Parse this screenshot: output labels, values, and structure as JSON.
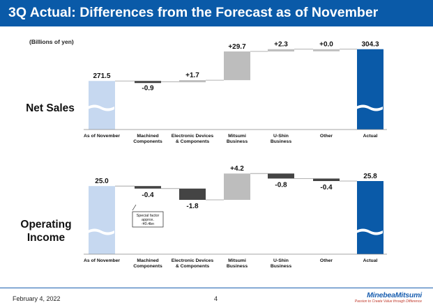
{
  "title": "3Q Actual: Differences from the Forecast as of November",
  "unit": "(Billions of yen)",
  "colors": {
    "header": "#0a5aa8",
    "start": "#c6d8f0",
    "end": "#0a5aa8",
    "positive": "#bdbdbd",
    "negative": "#444444",
    "connector": "#999999"
  },
  "chart_data": [
    {
      "type": "bar",
      "subtype": "waterfall",
      "title": "Net Sales",
      "categories": [
        "As of November",
        "Machined\nComponents",
        "Electronic Devices\n& Components",
        "Mitsumi\nBusiness",
        "U-Shin\nBusiness",
        "Other",
        "Actual"
      ],
      "values": [
        271.5,
        -0.9,
        1.7,
        29.7,
        2.3,
        0.0,
        304.3
      ],
      "labels": [
        "271.5",
        "-0.9",
        "+1.7",
        "+29.7",
        "+2.3",
        "+0.0",
        "304.3"
      ],
      "axis_break": true
    },
    {
      "type": "bar",
      "subtype": "waterfall",
      "title": "Operating\nIncome",
      "categories": [
        "As of November",
        "Machined\nComponents",
        "Electronic Devices\n& Components",
        "Mitsumi\nBusiness",
        "U-Shin\nBusiness",
        "Other",
        "Actual"
      ],
      "values": [
        25.0,
        -0.4,
        -1.8,
        4.2,
        -0.8,
        -0.4,
        25.8
      ],
      "labels": [
        "25.0",
        "-0.4",
        "-1.8",
        "+4.2",
        "-0.8",
        "-0.4",
        "25.8"
      ],
      "axis_break": true,
      "annotation": "Special factor\napprox.\n-¥0.4bn"
    }
  ],
  "footer": {
    "date": "February 4, 2022",
    "page": "4",
    "brand": "MinebeaMitsumi",
    "tagline": "Passion to Create Value through Difference"
  }
}
